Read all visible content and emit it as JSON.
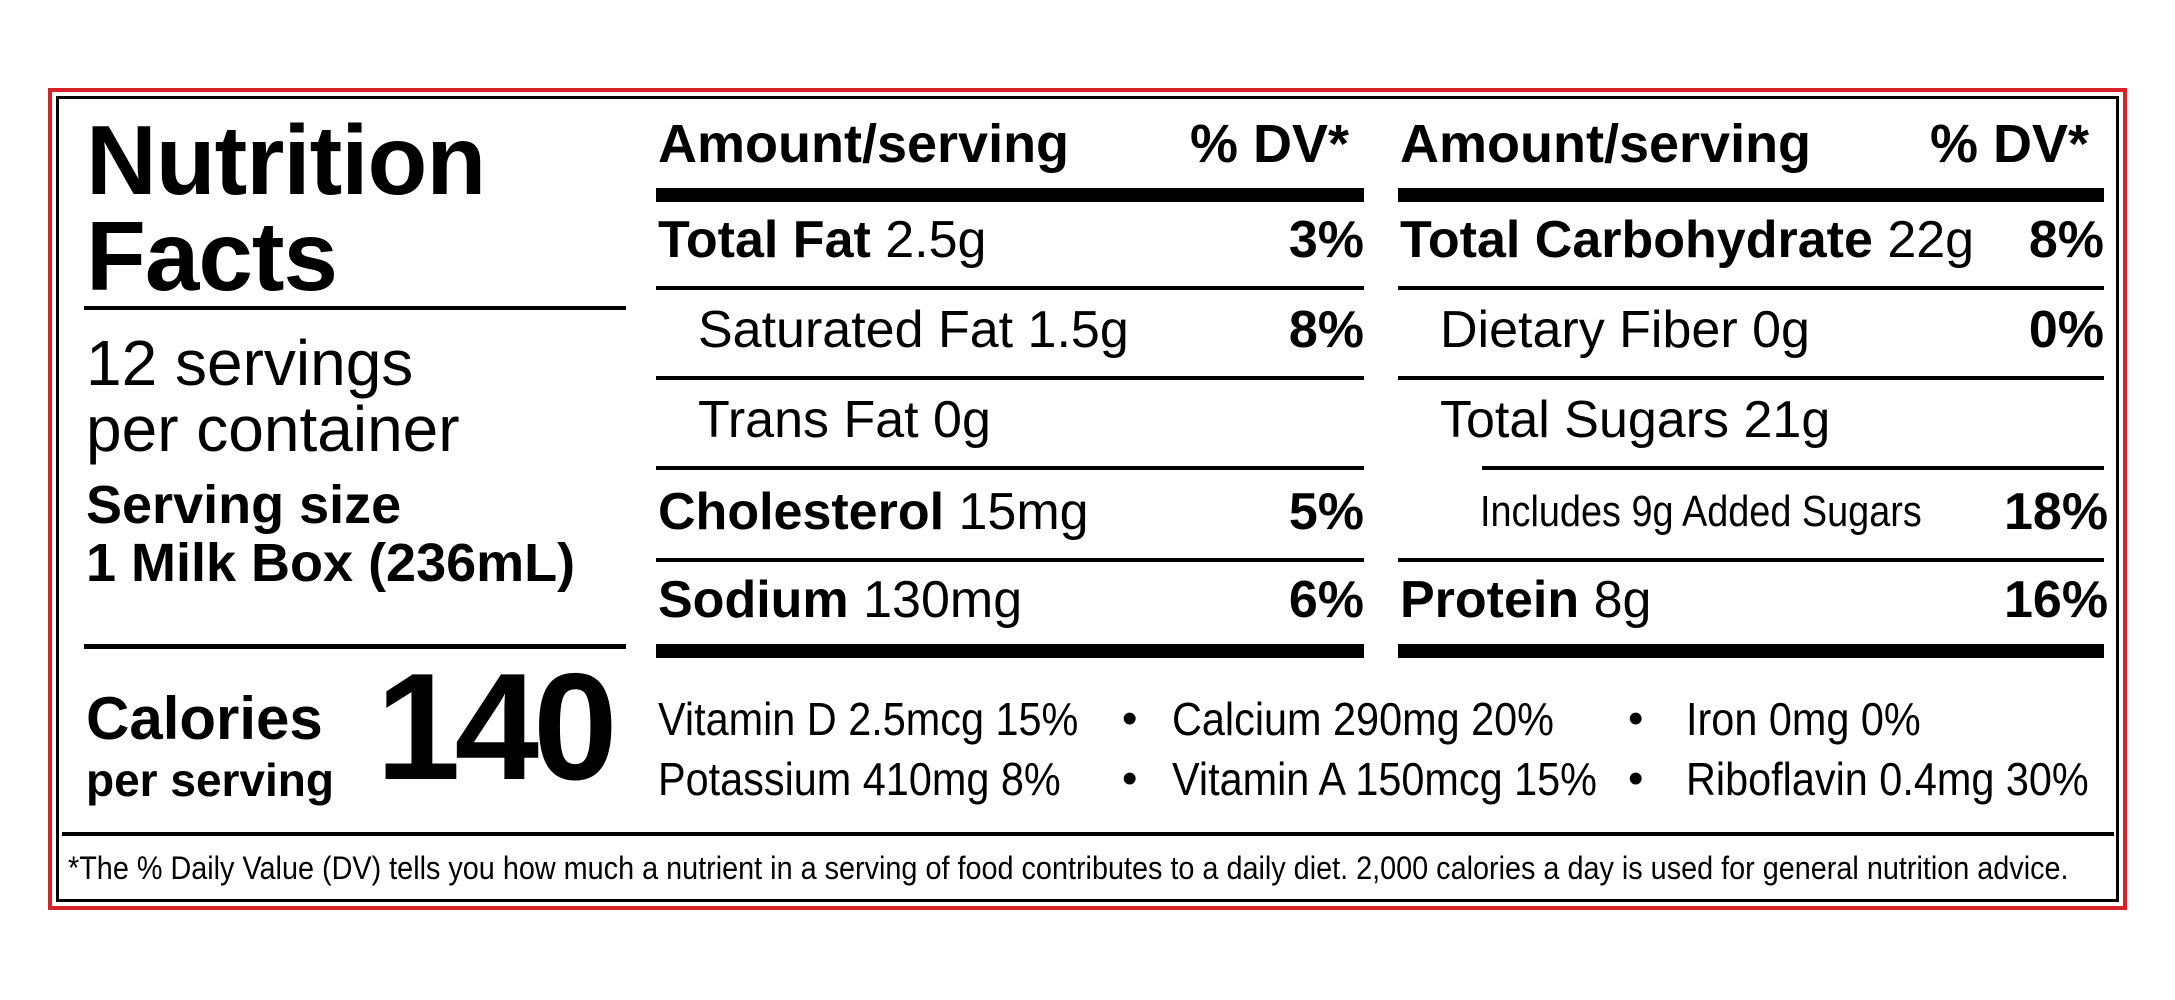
{
  "title": {
    "line1": "Nutrition",
    "line2": "Facts"
  },
  "servings": {
    "line1": "12 servings",
    "line2": "per container"
  },
  "serving_size": {
    "label": "Serving size",
    "value": "1 Milk Box (236mL)"
  },
  "calories": {
    "label": "Calories",
    "sub": "per serving",
    "value": "140"
  },
  "left_column": {
    "header_amount": "Amount/serving",
    "header_dv": "% DV*",
    "rows": [
      {
        "name": "Total Fat",
        "amount": "2.5g",
        "dv": "3%"
      },
      {
        "name": "Saturated Fat",
        "amount": "1.5g",
        "dv": "8%"
      },
      {
        "name": "Trans Fat",
        "amount": "0g",
        "dv": ""
      },
      {
        "name": "Cholesterol",
        "amount": "15mg",
        "dv": "5%"
      },
      {
        "name": "Sodium",
        "amount": "130mg",
        "dv": "6%"
      }
    ]
  },
  "right_column": {
    "header_amount": "Amount/serving",
    "header_dv": "% DV*",
    "rows": [
      {
        "name": "Total Carbohydrate",
        "amount": "22g",
        "dv": "8%"
      },
      {
        "name": "Dietary Fiber",
        "amount": "0g",
        "dv": "0%"
      },
      {
        "name": "Total Sugars",
        "amount": "21g",
        "dv": ""
      },
      {
        "name": "Includes 9g Added Sugars",
        "amount": "",
        "dv": "18%"
      },
      {
        "name": "Protein",
        "amount": "8g",
        "dv": "16%"
      }
    ]
  },
  "vitamins": {
    "row1": [
      "Vitamin D 2.5mcg 15%",
      "Calcium 290mg 20%",
      "Iron 0mg 0%"
    ],
    "row2": [
      "Potassium 410mg 8%",
      "Vitamin A 150mcg 15%",
      "Riboflavin 0.4mg 30%"
    ],
    "separator": "•"
  },
  "footnote": "*The % Daily Value (DV) tells you how much a nutrient in a serving of food contributes to a daily diet. 2,000 calories a day is used for general nutrition advice.",
  "colors": {
    "border": "#d8222a",
    "text": "#000000"
  }
}
